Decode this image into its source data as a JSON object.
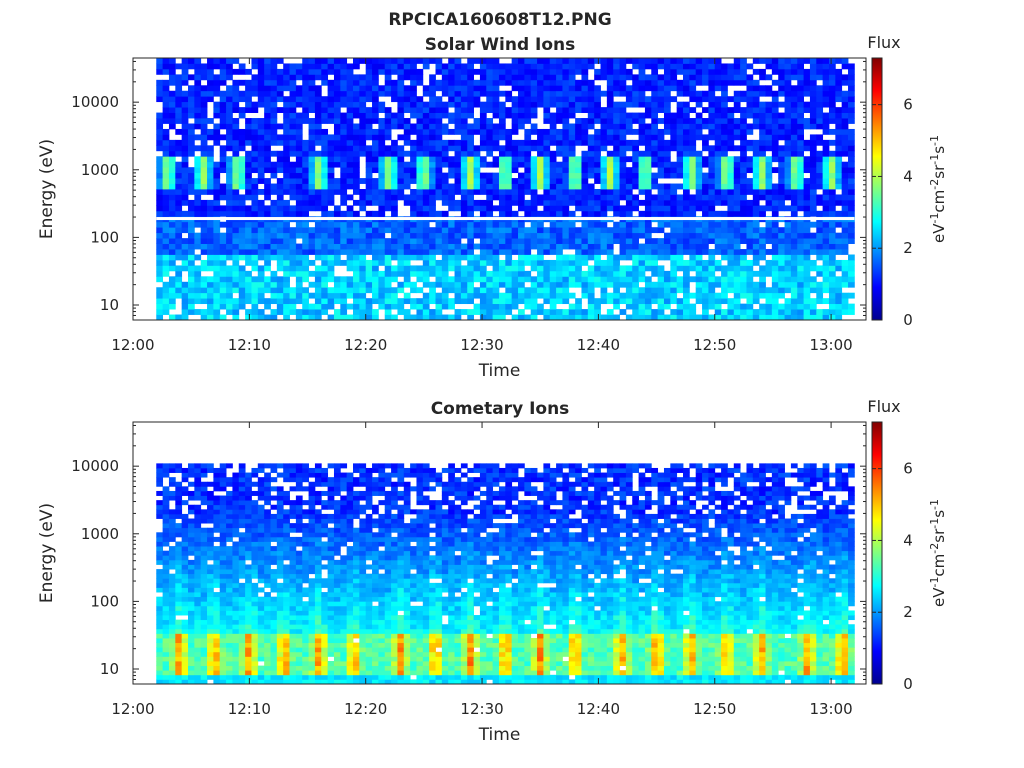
{
  "figure_title": "RPCICA160608T12.PNG",
  "colormap": [
    "#00008f",
    "#0000ff",
    "#0080ff",
    "#00ffff",
    "#80ff80",
    "#ffff00",
    "#ff8000",
    "#ff0000",
    "#800000"
  ],
  "chart_data": [
    {
      "type": "heatmap",
      "title": "Solar Wind Ions",
      "xlabel": "Time",
      "ylabel": "Energy (eV)",
      "y_scale": "log",
      "x_tick_labels": [
        "12:00",
        "12:10",
        "12:20",
        "12:30",
        "12:40",
        "12:50",
        "13:00"
      ],
      "y_tick_labels": [
        "10",
        "100",
        "1000",
        "10000"
      ],
      "xlim": [
        "12:00",
        "13:03"
      ],
      "ylim": [
        6,
        45000
      ],
      "data_time_range": [
        "12:02",
        "13:02"
      ],
      "colorbar": {
        "title": "Flux",
        "label": "eV-1cm-2sr-1s-1",
        "label_parts": [
          {
            "text": "eV"
          },
          {
            "text": "-1",
            "sup": true
          },
          {
            "text": "cm"
          },
          {
            "text": "-2",
            "sup": true
          },
          {
            "text": "sr"
          },
          {
            "text": "-1",
            "sup": true
          },
          {
            "text": "s"
          },
          {
            "text": "-1",
            "sup": true
          }
        ],
        "range": [
          0,
          7.3
        ],
        "tick_labels": [
          "0",
          "2",
          "4",
          "6"
        ]
      },
      "features": {
        "background_log_flux": 0.8,
        "low_energy_band": {
          "energy_range_eV": [
            6,
            60
          ],
          "log_flux": 2.3
        },
        "periodic_peaks": {
          "energy_range_eV": [
            500,
            1500
          ],
          "log_flux": 3.8,
          "times": [
            "12:03",
            "12:06",
            "12:09",
            "12:16",
            "12:22",
            "12:25",
            "12:29",
            "12:32",
            "12:35",
            "12:38",
            "12:41",
            "12:44",
            "12:48",
            "12:51",
            "12:54",
            "12:57",
            "13:00"
          ]
        },
        "gap_line_energy_eV": 190
      }
    },
    {
      "type": "heatmap",
      "title": "Cometary Ions",
      "xlabel": "Time",
      "ylabel": "Energy (eV)",
      "y_scale": "log",
      "x_tick_labels": [
        "12:00",
        "12:10",
        "12:20",
        "12:30",
        "12:40",
        "12:50",
        "13:00"
      ],
      "y_tick_labels": [
        "10",
        "100",
        "1000",
        "10000"
      ],
      "xlim": [
        "12:00",
        "13:03"
      ],
      "ylim": [
        6,
        45000
      ],
      "data_time_range": [
        "12:02",
        "13:02"
      ],
      "max_energy_eV": 11000,
      "colorbar": {
        "title": "Flux",
        "label": "eV-1cm-2sr-1s-1",
        "label_parts": [
          {
            "text": "eV"
          },
          {
            "text": "-1",
            "sup": true
          },
          {
            "text": "cm"
          },
          {
            "text": "-2",
            "sup": true
          },
          {
            "text": "sr"
          },
          {
            "text": "-1",
            "sup": true
          },
          {
            "text": "s"
          },
          {
            "text": "-1",
            "sup": true
          }
        ],
        "range": [
          0,
          7.3
        ],
        "tick_labels": [
          "0",
          "2",
          "4",
          "6"
        ]
      },
      "features": {
        "background_log_flux": 0.9,
        "gradient": {
          "energy_range_eV": [
            50,
            2000
          ],
          "log_flux": [
            2.2,
            1.0
          ]
        },
        "low_energy_band": {
          "energy_range_eV": [
            8,
            35
          ],
          "log_flux": 3.5
        },
        "periodic_peaks": {
          "energy_range_eV": [
            10,
            30
          ],
          "log_flux": 5.0,
          "times": [
            "12:04",
            "12:07",
            "12:10",
            "12:13",
            "12:16",
            "12:19",
            "12:23",
            "12:26",
            "12:29",
            "12:32",
            "12:35",
            "12:38",
            "12:42",
            "12:45",
            "12:48",
            "12:51",
            "12:54",
            "12:58",
            "13:01"
          ]
        }
      }
    }
  ]
}
